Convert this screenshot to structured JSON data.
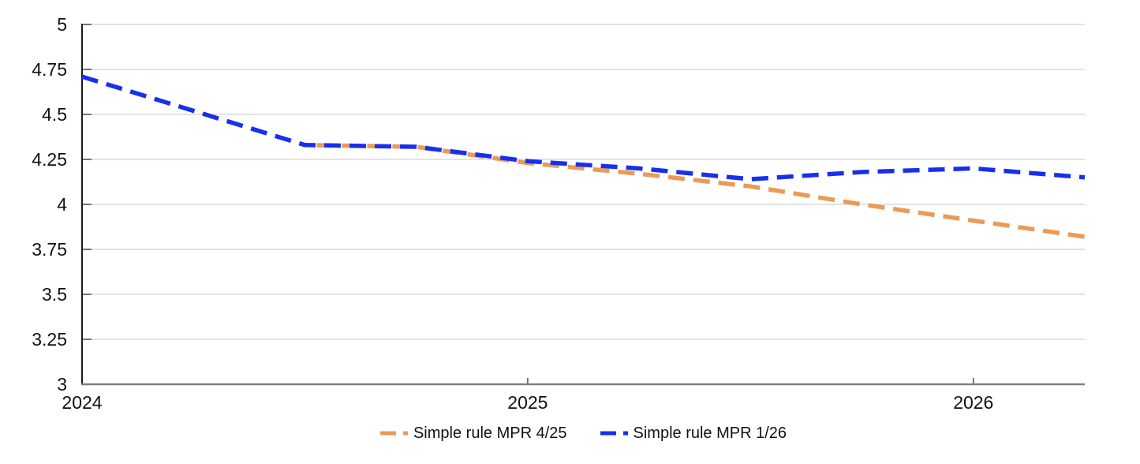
{
  "chart_data": {
    "type": "line",
    "title": "",
    "xlabel": "",
    "ylabel": "",
    "xlim": [
      2024.0,
      2026.25
    ],
    "ylim": [
      3,
      5
    ],
    "grid": "horizontal",
    "legend_position": "bottom",
    "x_ticks": [
      2024,
      2025,
      2026
    ],
    "x_tick_labels": [
      "2024",
      "2025",
      "2026"
    ],
    "y_ticks": [
      3,
      3.25,
      3.5,
      3.75,
      4,
      4.25,
      4.5,
      4.75,
      5
    ],
    "y_tick_labels": [
      "3",
      "3.25",
      "3.5",
      "3.75",
      "4",
      "4.25",
      "4.5",
      "4.75",
      "5"
    ],
    "series": [
      {
        "name": "Simple rule MPR 4/25",
        "color": "#EC9A56",
        "line_style": "dashed",
        "x": [
          2024.5,
          2024.75,
          2025.0,
          2025.25,
          2025.5,
          2025.75,
          2026.0,
          2026.25
        ],
        "values": [
          4.33,
          4.32,
          4.23,
          4.17,
          4.1,
          4.0,
          3.91,
          3.82
        ]
      },
      {
        "name": "Simple rule MPR 1/26",
        "color": "#1730EE",
        "line_style": "dashed",
        "x": [
          2024.0,
          2024.25,
          2024.5,
          2024.75,
          2025.0,
          2025.25,
          2025.5,
          2025.75,
          2026.0,
          2026.25
        ],
        "values": [
          4.71,
          4.52,
          4.33,
          4.32,
          4.24,
          4.2,
          4.14,
          4.18,
          4.2,
          4.15
        ]
      }
    ]
  },
  "colors": {
    "gridline": "#D9D9D9",
    "y_axis": "#1a1a1a",
    "x_axis": "#808080",
    "tick": "#4d4d4d",
    "text": "#111111"
  },
  "legend": {
    "items": [
      {
        "label": "Simple rule MPR 4/25",
        "color": "#EC9A56"
      },
      {
        "label": "Simple rule MPR 1/26",
        "color": "#1730EE"
      }
    ]
  }
}
